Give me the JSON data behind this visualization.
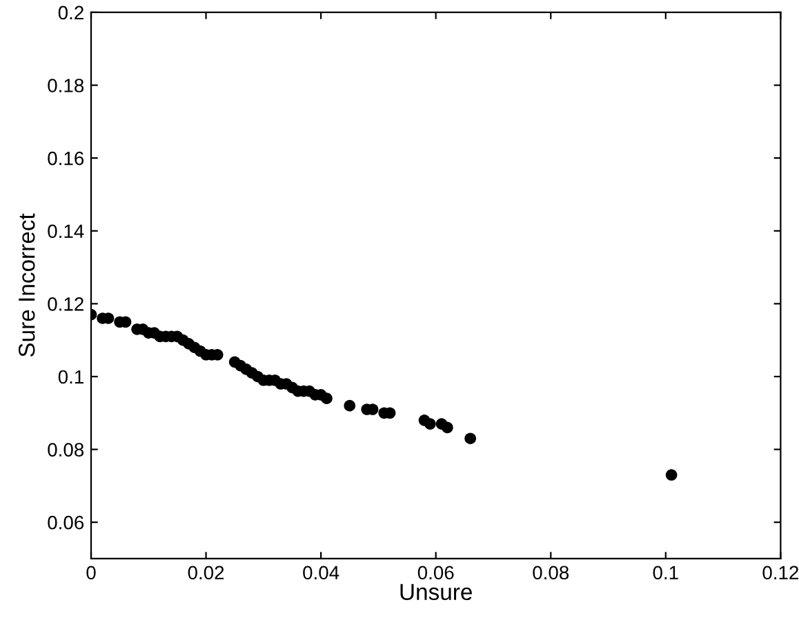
{
  "chart_data": {
    "type": "scatter",
    "xlabel": "Unsure",
    "ylabel": "Sure Incorrect",
    "x": [
      0,
      0.002,
      0.003,
      0.005,
      0.006,
      0.008,
      0.009,
      0.01,
      0.011,
      0.012,
      0.013,
      0.014,
      0.015,
      0.016,
      0.017,
      0.018,
      0.019,
      0.02,
      0.021,
      0.022,
      0.025,
      0.026,
      0.027,
      0.028,
      0.029,
      0.03,
      0.031,
      0.032,
      0.033,
      0.034,
      0.035,
      0.036,
      0.037,
      0.038,
      0.039,
      0.04,
      0.041,
      0.045,
      0.048,
      0.049,
      0.051,
      0.052,
      0.058,
      0.059,
      0.061,
      0.062,
      0.066,
      0.101
    ],
    "series": [
      {
        "color": "#000000",
        "values": [
          0.117,
          0.116,
          0.116,
          0.115,
          0.115,
          0.113,
          0.113,
          0.112,
          0.112,
          0.111,
          0.111,
          0.111,
          0.111,
          0.11,
          0.109,
          0.108,
          0.107,
          0.106,
          0.106,
          0.106,
          0.104,
          0.103,
          0.102,
          0.101,
          0.1,
          0.099,
          0.099,
          0.099,
          0.098,
          0.098,
          0.097,
          0.096,
          0.096,
          0.096,
          0.095,
          0.095,
          0.094,
          0.092,
          0.091,
          0.091,
          0.09,
          0.09,
          0.088,
          0.087,
          0.087,
          0.086,
          0.083,
          0.073
        ]
      }
    ],
    "marker": "circle",
    "xlim": [
      0,
      0.12
    ],
    "xticks": [
      0,
      0.02,
      0.04,
      0.06,
      0.08,
      0.1,
      0.12
    ],
    "ylim": [
      0.05,
      0.2
    ],
    "yticks": [
      0.06,
      0.08,
      0.1,
      0.12,
      0.14,
      0.16,
      0.18,
      0.2
    ],
    "grid": false,
    "legend": false
  }
}
